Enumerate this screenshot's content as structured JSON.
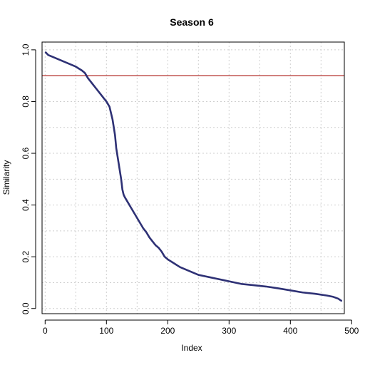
{
  "chart_data": {
    "type": "line",
    "title": "Season 6",
    "xlabel": "Index",
    "ylabel": "Similarity",
    "xlim": [
      -5,
      488
    ],
    "ylim": [
      -0.02,
      1.03
    ],
    "x_ticks": [
      0,
      100,
      200,
      300,
      400,
      500
    ],
    "x_tick_labels": [
      "0",
      "100",
      "200",
      "300",
      "400",
      "500"
    ],
    "y_ticks": [
      0.0,
      0.2,
      0.4,
      0.6,
      0.8,
      1.0
    ],
    "y_tick_labels": [
      "0.0",
      "0.2",
      "0.4",
      "0.6",
      "0.8",
      "1.0"
    ],
    "grid": true,
    "grid_x": [
      0,
      50,
      100,
      150,
      200,
      250,
      300,
      350,
      400,
      450
    ],
    "grid_y": [
      0.0,
      0.1,
      0.2,
      0.3,
      0.4,
      0.5,
      0.6,
      0.7,
      0.8,
      0.9,
      1.0
    ],
    "reference_line": {
      "y": 0.9,
      "color": "#c0504d"
    },
    "series": [
      {
        "color": "#2e3175",
        "x": [
          1,
          5,
          10,
          20,
          30,
          40,
          50,
          60,
          65,
          70,
          75,
          80,
          85,
          90,
          95,
          100,
          105,
          108,
          110,
          112,
          114,
          116,
          118,
          120,
          122,
          124,
          126,
          128,
          130,
          135,
          140,
          145,
          150,
          155,
          160,
          165,
          170,
          175,
          180,
          185,
          190,
          195,
          200,
          210,
          220,
          230,
          240,
          250,
          260,
          270,
          280,
          290,
          300,
          320,
          340,
          360,
          380,
          400,
          420,
          440,
          460,
          470,
          478,
          483
        ],
        "y": [
          0.99,
          0.98,
          0.975,
          0.965,
          0.955,
          0.945,
          0.935,
          0.92,
          0.91,
          0.89,
          0.875,
          0.86,
          0.845,
          0.83,
          0.815,
          0.8,
          0.78,
          0.75,
          0.73,
          0.7,
          0.67,
          0.62,
          0.59,
          0.56,
          0.53,
          0.5,
          0.46,
          0.44,
          0.43,
          0.41,
          0.39,
          0.37,
          0.35,
          0.33,
          0.31,
          0.295,
          0.275,
          0.26,
          0.245,
          0.235,
          0.22,
          0.2,
          0.19,
          0.175,
          0.16,
          0.15,
          0.14,
          0.13,
          0.125,
          0.12,
          0.115,
          0.11,
          0.105,
          0.095,
          0.09,
          0.085,
          0.078,
          0.07,
          0.062,
          0.057,
          0.05,
          0.045,
          0.038,
          0.03
        ]
      }
    ]
  }
}
